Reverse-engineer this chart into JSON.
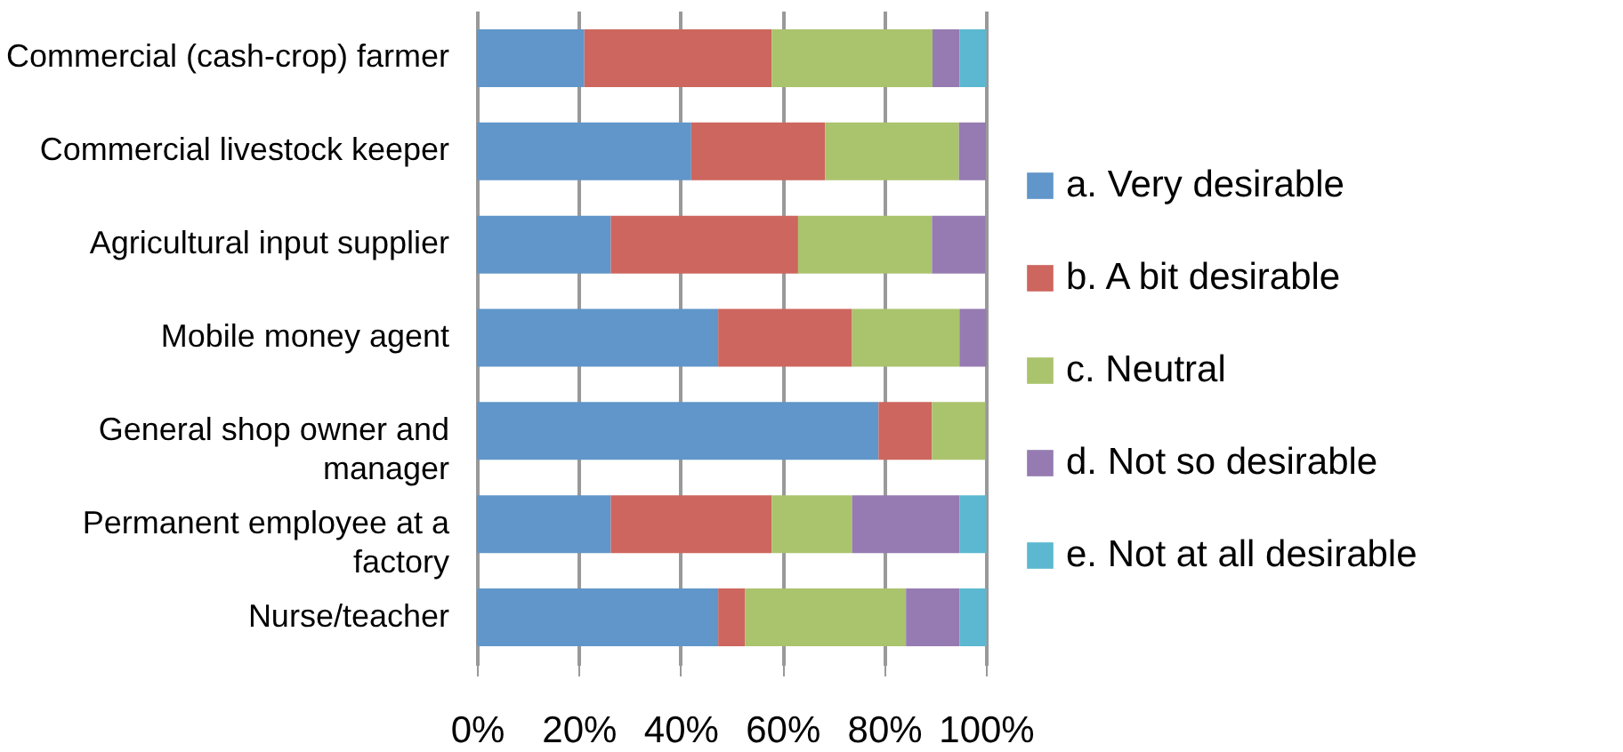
{
  "chart_data": {
    "type": "bar",
    "orientation": "horizontal",
    "stacked": true,
    "categories": [
      "Commercial (cash-crop) farmer",
      "Commercial livestock keeper",
      "Agricultural input supplier",
      "Mobile money agent",
      "General shop owner and manager",
      "Permanent employee at a factory",
      "Nurse/teacher"
    ],
    "series": [
      {
        "name": "a. Very desirable",
        "color": "#6096c9",
        "values": [
          21.1,
          42.1,
          26.3,
          47.4,
          78.9,
          26.3,
          47.4
        ]
      },
      {
        "name": "b. A bit desirable",
        "color": "#cd665e",
        "values": [
          36.8,
          26.3,
          36.8,
          26.3,
          10.5,
          31.6,
          5.3
        ]
      },
      {
        "name": "c. Neutral",
        "color": "#aac36d",
        "values": [
          31.6,
          26.3,
          26.3,
          21.1,
          10.5,
          15.8,
          31.6
        ]
      },
      {
        "name": "d. Not so desirable",
        "color": "#957bb1",
        "values": [
          5.3,
          5.3,
          10.5,
          5.3,
          0,
          21.1,
          10.5
        ]
      },
      {
        "name": "e. Not at all desirable",
        "color": "#5bb8d0",
        "values": [
          5.3,
          0,
          0,
          0,
          0,
          5.3,
          5.3
        ]
      }
    ],
    "xlim": [
      0,
      100
    ],
    "xticks": [
      {
        "value": 0,
        "label": "0%"
      },
      {
        "value": 20,
        "label": "20%"
      },
      {
        "value": 40,
        "label": "40%"
      },
      {
        "value": 60,
        "label": "60%"
      },
      {
        "value": 80,
        "label": "80%"
      },
      {
        "value": 100,
        "label": "100%"
      }
    ],
    "grid": "x",
    "legend": "right"
  }
}
